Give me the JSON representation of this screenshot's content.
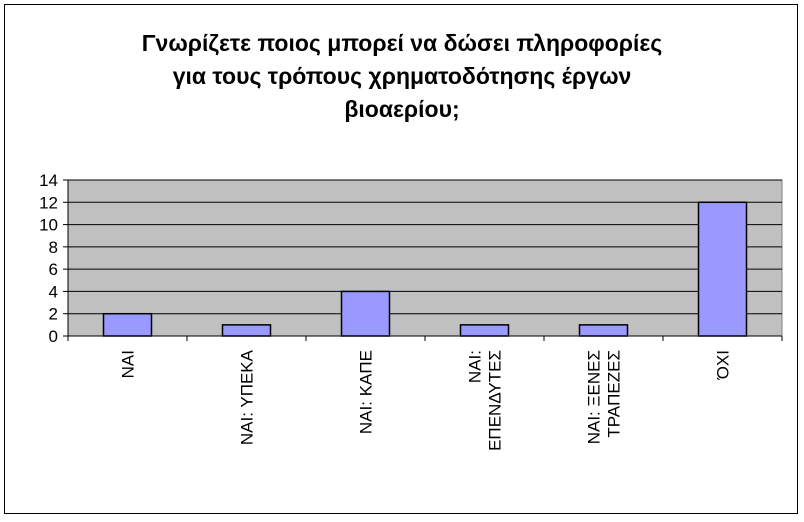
{
  "chart_data": {
    "type": "bar",
    "title": [
      "Γνωρίζετε ποιος μπορεί να δώσει πληροφορίες",
      "για τους τρόπους χρηματοδότησης έργων",
      "βιοαερίου;"
    ],
    "categories": [
      [
        "ΝΑΙ"
      ],
      [
        "ΝΑΙ: ΥΠΕΚΑ"
      ],
      [
        "ΝΑΙ: ΚΑΠΕ"
      ],
      [
        "ΝΑΙ:",
        "ΕΠΕΝΔΥΤΕΣ"
      ],
      [
        "ΝΑΙ: ΞΕΝΕΣ",
        "ΤΡΑΠΕΖΕΣ"
      ],
      [
        "ΌΧΙ"
      ]
    ],
    "values": [
      2,
      1,
      4,
      1,
      1,
      12
    ],
    "ylim": [
      0,
      14
    ],
    "yticks": [
      0,
      2,
      4,
      6,
      8,
      10,
      12,
      14
    ],
    "grid": true,
    "legend": "none",
    "colors": {
      "bar_fill": "#9999FF",
      "bar_stroke": "#000000",
      "plot_bg": "#C0C0C0",
      "grid": "#000000"
    }
  }
}
